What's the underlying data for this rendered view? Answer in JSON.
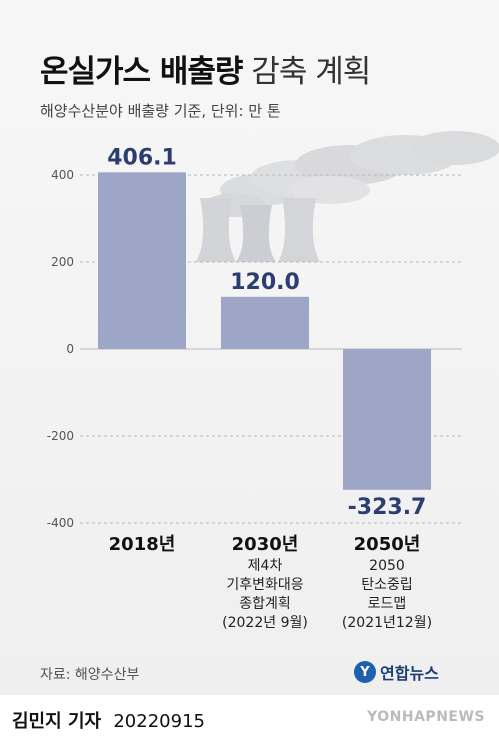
{
  "title": {
    "bold": "온실가스 배출량",
    "light": "감축 계획"
  },
  "subtitle": "해양수산분야 배출량 기준, 단위: 만 톤",
  "chart_data": {
    "type": "bar",
    "categories": [
      "2018년",
      "2030년",
      "2050년"
    ],
    "category_notes": [
      [],
      [
        "제4차",
        "기후변화대응",
        "종합계획",
        "(2022년 9월)"
      ],
      [
        "2050",
        "탄소중립",
        "로드맵",
        "(2021년12월)"
      ]
    ],
    "values": [
      406.1,
      120.0,
      -323.7
    ],
    "value_labels": [
      "406.1",
      "120.0",
      "-323.7"
    ],
    "yticks": [
      400,
      200,
      0,
      -200,
      -400
    ],
    "ylim": [
      -400,
      400
    ],
    "bar_color": "#9ea6c8",
    "label_color": "#2c3e70",
    "grid": true
  },
  "source": "자료: 해양수산부",
  "logo": {
    "mark": "Y",
    "text": "연합뉴스"
  },
  "author": "김민지 기자",
  "date": "20220915",
  "watermark": "YONHAPNEWS"
}
